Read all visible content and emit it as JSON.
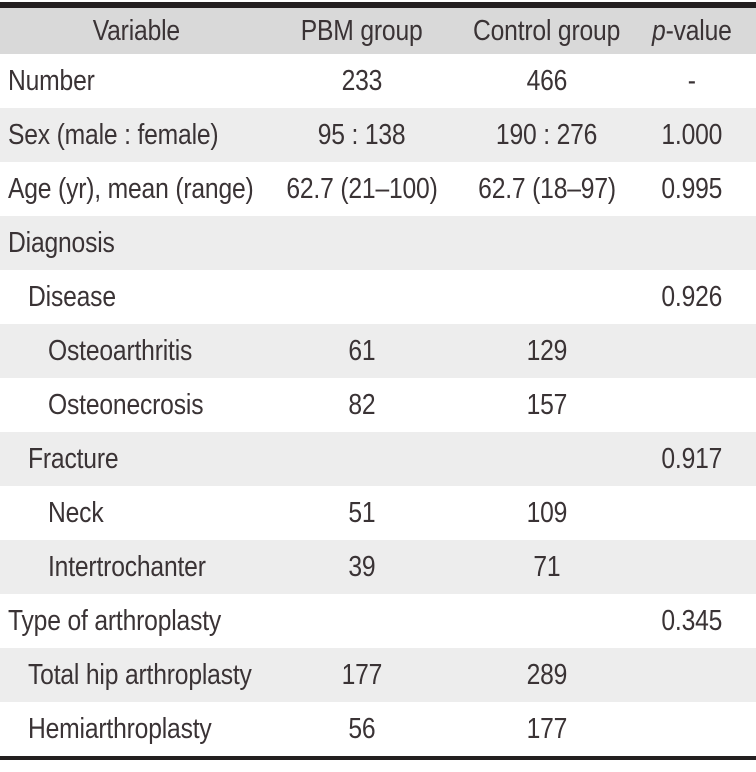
{
  "colors": {
    "header_bg": "#d9d9d9",
    "stripe_bg": "#ededed",
    "text": "#3a3335",
    "rule": "#231f20",
    "page_bg": "#ffffff"
  },
  "table": {
    "header": {
      "variable": "Variable",
      "pbm": "PBM group",
      "control": "Control group",
      "p_italic": "p",
      "p_rest": "-value"
    },
    "rows": [
      {
        "label": "Number",
        "indent": 0,
        "pbm": "233",
        "control": "466",
        "p": "-"
      },
      {
        "label": "Sex (male : female)",
        "indent": 0,
        "pbm": "95 : 138",
        "control": "190 : 276",
        "p": "1.000"
      },
      {
        "label": "Age (yr), mean (range)",
        "indent": 0,
        "pbm": "62.7 (21–100)",
        "control": "62.7 (18–97)",
        "p": "0.995"
      },
      {
        "label": "Diagnosis",
        "indent": 0,
        "pbm": "",
        "control": "",
        "p": ""
      },
      {
        "label": "Disease",
        "indent": 1,
        "pbm": "",
        "control": "",
        "p": "0.926"
      },
      {
        "label": "Osteoarthritis",
        "indent": 2,
        "pbm": "61",
        "control": "129",
        "p": ""
      },
      {
        "label": "Osteonecrosis",
        "indent": 2,
        "pbm": "82",
        "control": "157",
        "p": ""
      },
      {
        "label": "Fracture",
        "indent": 1,
        "pbm": "",
        "control": "",
        "p": "0.917"
      },
      {
        "label": "Neck",
        "indent": 2,
        "pbm": "51",
        "control": "109",
        "p": ""
      },
      {
        "label": "Intertrochanter",
        "indent": 2,
        "pbm": "39",
        "control": "71",
        "p": ""
      },
      {
        "label": "Type of arthroplasty",
        "indent": 0,
        "pbm": "",
        "control": "",
        "p": "0.345"
      },
      {
        "label": "Total hip arthroplasty",
        "indent": 1,
        "pbm": "177",
        "control": "289",
        "p": ""
      },
      {
        "label": "Hemiarthroplasty",
        "indent": 1,
        "pbm": "56",
        "control": "177",
        "p": ""
      }
    ]
  }
}
